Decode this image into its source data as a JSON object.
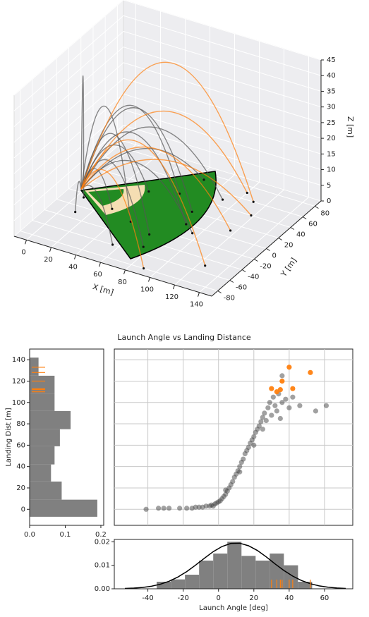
{
  "chart_data": [
    {
      "type": "line3d",
      "xlabel": "X [m]",
      "ylabel": "Y [m]",
      "zlabel": "Z [m]",
      "xlim": [
        -10,
        150
      ],
      "ylim": [
        -90,
        90
      ],
      "zlim": [
        0,
        45
      ],
      "xticks": [
        0,
        20,
        40,
        60,
        80,
        100,
        120,
        140
      ],
      "yticks": [
        -80,
        -60,
        -40,
        -20,
        0,
        20,
        40,
        60,
        80
      ],
      "zticks": [
        0,
        5,
        10,
        15,
        20,
        25,
        30,
        35,
        40,
        45
      ],
      "grid": true,
      "series": [
        {
          "color": "#555555",
          "x": [
            0,
            40,
            80
          ],
          "y": [
            0,
            10,
            20
          ],
          "z": [
            1,
            30,
            0
          ]
        },
        {
          "color": "#555555",
          "x": [
            0,
            35,
            70
          ],
          "y": [
            0,
            -15,
            -30
          ],
          "z": [
            1,
            25,
            0
          ]
        },
        {
          "color": "#555555",
          "x": [
            0,
            45,
            90
          ],
          "y": [
            0,
            25,
            50
          ],
          "z": [
            1,
            22,
            0
          ]
        },
        {
          "color": "#555555",
          "x": [
            0,
            30,
            60
          ],
          "y": [
            0,
            20,
            40
          ],
          "z": [
            1,
            28,
            0
          ]
        },
        {
          "color": "#555555",
          "x": [
            0,
            25,
            50
          ],
          "y": [
            0,
            -10,
            -20
          ],
          "z": [
            1,
            32,
            0
          ]
        },
        {
          "color": "#555555",
          "x": [
            0,
            38,
            75
          ],
          "y": [
            0,
            -25,
            -50
          ],
          "z": [
            1,
            18,
            0
          ]
        },
        {
          "color": "#555555",
          "x": [
            0,
            42,
            85
          ],
          "y": [
            0,
            0,
            0
          ],
          "z": [
            1,
            24,
            0
          ]
        },
        {
          "color": "#555555",
          "x": [
            0,
            20,
            40
          ],
          "y": [
            0,
            15,
            30
          ],
          "z": [
            1,
            15,
            0
          ]
        },
        {
          "color": "#555555",
          "x": [
            0,
            15,
            30
          ],
          "y": [
            0,
            -5,
            -10
          ],
          "z": [
            1,
            10,
            0
          ]
        },
        {
          "color": "#555555",
          "x": [
            0,
            33,
            65
          ],
          "y": [
            0,
            35,
            70
          ],
          "z": [
            1,
            12,
            0
          ]
        },
        {
          "color": "#555555",
          "x": [
            0,
            48,
            95
          ],
          "y": [
            0,
            -5,
            -10
          ],
          "z": [
            1,
            16,
            0
          ]
        },
        {
          "color": "#555555",
          "x": [
            0,
            5,
            10
          ],
          "y": [
            0,
            -15,
            -30
          ],
          "z": [
            1,
            6,
            0
          ]
        },
        {
          "color": "#555555",
          "x": [
            0,
            3,
            5
          ],
          "y": [
            0,
            -3,
            -6
          ],
          "z": [
            1,
            38,
            0
          ]
        },
        {
          "color": "#555555",
          "x": [
            0,
            28,
            55
          ],
          "y": [
            0,
            -30,
            -60
          ],
          "z": [
            1,
            8,
            0
          ]
        },
        {
          "color": "#ff7f0e",
          "x": [
            0,
            55,
            110
          ],
          "y": [
            0,
            30,
            60
          ],
          "z": [
            1,
            43,
            0
          ]
        },
        {
          "color": "#ff7f0e",
          "x": [
            0,
            62,
            125
          ],
          "y": [
            0,
            -25,
            -50
          ],
          "z": [
            1,
            27,
            0
          ]
        },
        {
          "color": "#ff7f0e",
          "x": [
            0,
            50,
            100
          ],
          "y": [
            0,
            35,
            70
          ],
          "z": [
            1,
            26,
            0
          ]
        },
        {
          "color": "#ff7f0e",
          "x": [
            0,
            58,
            116
          ],
          "y": [
            0,
            5,
            10
          ],
          "z": [
            1,
            20,
            0
          ]
        },
        {
          "color": "#ff7f0e",
          "x": [
            0,
            45,
            90
          ],
          "y": [
            0,
            -40,
            -80
          ],
          "z": [
            1,
            17,
            0
          ]
        },
        {
          "color": "#ff7f0e",
          "x": [
            0,
            60,
            118
          ],
          "y": [
            0,
            20,
            40
          ],
          "z": [
            1,
            14,
            0
          ]
        }
      ]
    },
    {
      "type": "scatter",
      "title": "Launch Angle vs Landing Distance",
      "xlim": [
        -59,
        76
      ],
      "ylim": [
        -15,
        150
      ],
      "grid": true,
      "series": [
        {
          "color": "#444444",
          "x": [
            -41,
            -34,
            -31,
            -28,
            -22,
            -18,
            -15,
            -13,
            -11,
            -9,
            -7,
            -5,
            -4,
            -2,
            -1,
            0,
            1,
            2,
            3,
            4,
            5,
            6,
            7,
            8,
            9,
            10,
            11,
            12,
            13,
            14,
            15,
            16,
            17,
            18,
            19,
            20,
            21,
            22,
            23,
            24,
            25,
            26,
            27,
            28,
            29,
            30,
            31,
            32,
            33,
            34,
            35,
            36,
            38,
            40,
            42,
            46,
            55,
            61,
            36,
            -3,
            4,
            12,
            20,
            25
          ],
          "values": [
            0,
            1,
            1,
            1,
            1,
            1,
            1,
            2,
            2,
            2,
            3,
            3,
            4,
            5,
            6,
            7,
            8,
            10,
            12,
            14,
            17,
            20,
            23,
            26,
            30,
            33,
            36,
            40,
            44,
            47,
            52,
            55,
            58,
            62,
            65,
            68,
            72,
            75,
            78,
            82,
            86,
            90,
            83,
            95,
            100,
            88,
            105,
            97,
            92,
            108,
            85,
            100,
            103,
            95,
            105,
            97,
            92,
            97,
            125,
            3,
            18,
            35,
            60,
            75
          ]
        },
        {
          "color": "#ff7f0e",
          "x": [
            40,
            52,
            36,
            30,
            33,
            42,
            35
          ],
          "values": [
            133,
            128,
            120,
            113,
            110,
            113,
            112
          ]
        }
      ]
    },
    {
      "type": "histogram",
      "orientation": "horizontal",
      "color": "#808080",
      "ylabel": "Landing Dist [m]",
      "bins": [
        -7,
        9,
        26,
        42,
        59,
        75,
        92,
        108,
        125,
        142
      ],
      "values": [
        0.19,
        0.09,
        0.06,
        0.07,
        0.085,
        0.115,
        0.07,
        0.07,
        0.025
      ],
      "xlim": [
        0,
        0.208
      ],
      "xticks": [
        {
          "value": 0,
          "label": "0.0"
        },
        0.1,
        0.2
      ],
      "ylim": [
        -15,
        150
      ],
      "yticks": [
        0,
        20,
        40,
        60,
        80,
        100,
        120,
        140
      ]
    },
    {
      "type": "histogram",
      "orientation": "vertical",
      "color": "#808080",
      "xlabel": "Launch Angle [deg]",
      "bins": [
        -35,
        -27,
        -19,
        -11,
        -3,
        5,
        13,
        21,
        29,
        37,
        45,
        53
      ],
      "values": [
        0.003,
        0.004,
        0.006,
        0.012,
        0.015,
        0.02,
        0.014,
        0.012,
        0.015,
        0.01,
        0.003
      ],
      "xlim": [
        -59,
        76
      ],
      "xticks": [
        -40,
        -20,
        0,
        20,
        40,
        60
      ],
      "ylim": [
        0,
        0.021
      ],
      "yticks": [
        {
          "value": 0,
          "label": "0.00"
        },
        {
          "value": 0.01,
          "label": "0.01"
        },
        {
          "value": 0.02,
          "label": "0.02"
        }
      ],
      "series": [
        {
          "color": "#000000",
          "x": [
            -53,
            -48,
            -43,
            -38,
            -33,
            -28,
            -23,
            -18,
            -13,
            -8,
            -3,
            2,
            7,
            12,
            17,
            22,
            27,
            32,
            37,
            42,
            47,
            52,
            57,
            62,
            67,
            72
          ],
          "values": [
            0.00014,
            0.00029,
            0.00058,
            0.00109,
            0.00193,
            0.00321,
            0.005,
            0.00732,
            0.01007,
            0.013,
            0.0158,
            0.018,
            0.0193,
            0.0194,
            0.0183,
            0.0163,
            0.0136,
            0.0106,
            0.0078,
            0.0054,
            0.0035,
            0.00215,
            0.00123,
            0.00066,
            0.00034,
            0.00016
          ]
        }
      ]
    }
  ]
}
